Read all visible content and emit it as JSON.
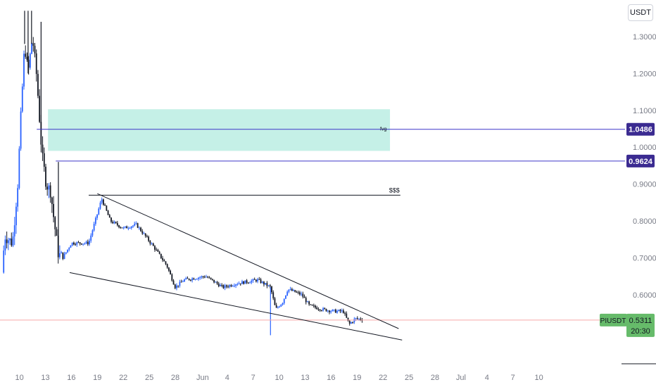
{
  "currency": "USDT",
  "symbol": "PIUSDT",
  "countdown": "20:30",
  "colors": {
    "up": "#2962ff",
    "down": "#131722",
    "zone_fill": "#b2ebdf",
    "level_line": "#3f37c9",
    "level_badge": "#3b2b91",
    "price_badge": "#66bb6a",
    "price_line": "#f7a6a6",
    "trendline": "#131722",
    "axis_text": "#787b86"
  },
  "chart_data": {
    "type": "candlestick",
    "title": "",
    "xlabel": "",
    "ylabel": "",
    "ylim": [
      0.49,
      1.37
    ],
    "grid": false,
    "y_ticks": [
      "0.6000",
      "0.7000",
      "0.8000",
      "0.9000",
      "1.0000",
      "1.1000",
      "1.2000",
      "1.3000"
    ],
    "x_ticks": [
      "10",
      "13",
      "16",
      "19",
      "22",
      "25",
      "28",
      "Jun",
      "4",
      "7",
      "10",
      "13",
      "16",
      "19",
      "22",
      "25",
      "28",
      "Jul",
      "4",
      "7",
      "10"
    ],
    "price_path": [
      {
        "t": 0.0,
        "p": 0.66
      },
      {
        "t": 0.3,
        "p": 0.76
      },
      {
        "t": 1.2,
        "p": 0.74
      },
      {
        "t": 1.8,
        "p": 0.9
      },
      {
        "t": 2.2,
        "p": 1.1
      },
      {
        "t": 2.6,
        "p": 1.28
      },
      {
        "t": 3.0,
        "p": 1.2
      },
      {
        "t": 3.5,
        "p": 1.3
      },
      {
        "t": 4.0,
        "p": 1.19
      },
      {
        "t": 4.6,
        "p": 0.98
      },
      {
        "t": 5.1,
        "p": 0.9
      },
      {
        "t": 5.6,
        "p": 0.88
      },
      {
        "t": 6.0,
        "p": 0.8
      },
      {
        "t": 6.5,
        "p": 0.71
      },
      {
        "t": 7.0,
        "p": 0.7
      },
      {
        "t": 8.0,
        "p": 0.74
      },
      {
        "t": 10.0,
        "p": 0.74
      },
      {
        "t": 11.5,
        "p": 0.86
      },
      {
        "t": 12.5,
        "p": 0.8
      },
      {
        "t": 14.0,
        "p": 0.78
      },
      {
        "t": 15.5,
        "p": 0.79
      },
      {
        "t": 17.5,
        "p": 0.73
      },
      {
        "t": 19.0,
        "p": 0.68
      },
      {
        "t": 20.0,
        "p": 0.62
      },
      {
        "t": 21.0,
        "p": 0.64
      },
      {
        "t": 23.5,
        "p": 0.65
      },
      {
        "t": 25.5,
        "p": 0.62
      },
      {
        "t": 27.0,
        "p": 0.63
      },
      {
        "t": 29.5,
        "p": 0.64
      },
      {
        "t": 31.0,
        "p": 0.62
      },
      {
        "t": 31.6,
        "p": 0.56
      },
      {
        "t": 32.4,
        "p": 0.58
      },
      {
        "t": 33.0,
        "p": 0.615
      },
      {
        "t": 34.6,
        "p": 0.6
      },
      {
        "t": 35.5,
        "p": 0.57
      },
      {
        "t": 37.0,
        "p": 0.56
      },
      {
        "t": 38.4,
        "p": 0.555
      },
      {
        "t": 39.4,
        "p": 0.555
      },
      {
        "t": 40.1,
        "p": 0.52
      },
      {
        "t": 40.8,
        "p": 0.535
      },
      {
        "t": 41.7,
        "p": 0.533
      }
    ],
    "spikes": [
      {
        "t": 31.0,
        "low": 0.49
      },
      {
        "t": 2.6,
        "high": 1.37
      },
      {
        "t": 3.0,
        "high": 1.37
      },
      {
        "t": 3.4,
        "high": 1.37
      },
      {
        "t": 4.5,
        "high": 1.34
      },
      {
        "t": 6.5,
        "high": 0.96
      }
    ],
    "zone": {
      "t0": 5.3,
      "t1": 44.8,
      "top": 1.103,
      "bottom": 0.99
    },
    "levels": [
      {
        "label": "1.0486",
        "value": 1.0486,
        "t_start": 4.0,
        "note": "fvg"
      },
      {
        "label": "0.9624",
        "value": 0.9624,
        "t_start": 6.2,
        "note": ""
      }
    ],
    "sss": {
      "label": "$$$",
      "value": 0.87,
      "t0": 10.0,
      "t1": 46.0
    },
    "wedge_upper": {
      "t0": 11.0,
      "p0": 0.874,
      "t1": 45.8,
      "p1": 0.508
    },
    "wedge_lower": {
      "t0": 7.8,
      "p0": 0.66,
      "t1": 46.2,
      "p1": 0.477
    },
    "last_price": 0.5311,
    "last_price_label": "0.5311"
  }
}
